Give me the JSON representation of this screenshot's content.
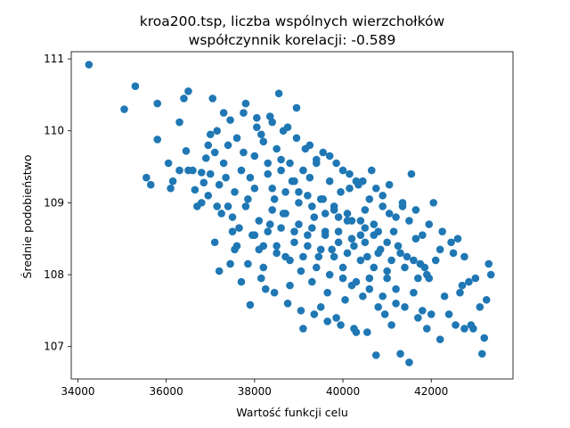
{
  "chart_data": {
    "type": "scatter",
    "title": "kroa200.tsp, liczba wspólnych wierzchołków",
    "subtitle": "współczynnik korelacji: -0.589",
    "xlabel": "Wartość funkcji celu",
    "ylabel": "Średnie podobieństwo",
    "xlim": [
      33850,
      43850
    ],
    "ylim": [
      106.55,
      111.1
    ],
    "xticks": [
      34000,
      36000,
      38000,
      40000,
      42000
    ],
    "xtick_labels": [
      "34000",
      "36000",
      "38000",
      "40000",
      "42000"
    ],
    "yticks": [
      107,
      108,
      109,
      110,
      111
    ],
    "ytick_labels": [
      "107",
      "108",
      "109",
      "110",
      "111"
    ],
    "grid": false,
    "point_color": "#1f77b4",
    "series": [
      {
        "points": [
          [
            34250,
            110.92
          ],
          [
            35050,
            110.3
          ],
          [
            35300,
            110.62
          ],
          [
            35550,
            109.35
          ],
          [
            35650,
            109.25
          ],
          [
            35800,
            110.38
          ],
          [
            35800,
            109.88
          ],
          [
            36050,
            109.55
          ],
          [
            36100,
            109.2
          ],
          [
            36150,
            109.3
          ],
          [
            36300,
            109.45
          ],
          [
            36300,
            110.12
          ],
          [
            36400,
            110.45
          ],
          [
            36450,
            109.72
          ],
          [
            36500,
            110.55
          ],
          [
            36500,
            109.45
          ],
          [
            36600,
            109.45
          ],
          [
            36650,
            109.18
          ],
          [
            36700,
            108.95
          ],
          [
            36800,
            109.42
          ],
          [
            36850,
            109.28
          ],
          [
            36900,
            109.62
          ],
          [
            36950,
            109.1
          ],
          [
            37000,
            109.95
          ],
          [
            37050,
            110.45
          ],
          [
            37100,
            108.45
          ],
          [
            37150,
            108.95
          ],
          [
            37200,
            108.05
          ],
          [
            37300,
            110.25
          ],
          [
            37350,
            109.35
          ],
          [
            37400,
            108.95
          ],
          [
            37450,
            108.15
          ],
          [
            37500,
            108.8
          ],
          [
            37550,
            109.15
          ],
          [
            37600,
            108.4
          ],
          [
            37650,
            108.65
          ],
          [
            37700,
            107.9
          ],
          [
            37750,
            109.7
          ],
          [
            37800,
            110.38
          ],
          [
            37850,
            109.05
          ],
          [
            37900,
            107.58
          ],
          [
            37950,
            108.55
          ],
          [
            38000,
            109.2
          ],
          [
            38050,
            110.18
          ],
          [
            38100,
            108.35
          ],
          [
            38150,
            109.95
          ],
          [
            38200,
            108.1
          ],
          [
            38250,
            107.8
          ],
          [
            38300,
            109.4
          ],
          [
            38350,
            108.7
          ],
          [
            38400,
            110.12
          ],
          [
            38450,
            109.05
          ],
          [
            38500,
            108.4
          ],
          [
            38550,
            110.52
          ],
          [
            38600,
            109.6
          ],
          [
            38650,
            108.85
          ],
          [
            38700,
            108.25
          ],
          [
            38750,
            110.05
          ],
          [
            38800,
            107.85
          ],
          [
            38850,
            109.3
          ],
          [
            38900,
            108.6
          ],
          [
            38950,
            110.32
          ],
          [
            39000,
            109.15
          ],
          [
            39050,
            108.05
          ],
          [
            39100,
            107.25
          ],
          [
            39150,
            109.75
          ],
          [
            39200,
            108.55
          ],
          [
            39250,
            109.35
          ],
          [
            39300,
            107.9
          ],
          [
            39350,
            108.8
          ],
          [
            39400,
            109.55
          ],
          [
            39450,
            108.25
          ],
          [
            39500,
            107.55
          ],
          [
            39550,
            109.05
          ],
          [
            39600,
            108.6
          ],
          [
            39650,
            107.75
          ],
          [
            39700,
            109.65
          ],
          [
            39750,
            108.35
          ],
          [
            39800,
            108.95
          ],
          [
            39850,
            107.4
          ],
          [
            39900,
            108.45
          ],
          [
            39950,
            109.15
          ],
          [
            40000,
            108.1
          ],
          [
            40050,
            107.65
          ],
          [
            40100,
            108.75
          ],
          [
            40150,
            109.2
          ],
          [
            40200,
            107.85
          ],
          [
            40250,
            108.4
          ],
          [
            40300,
            107.2
          ],
          [
            40350,
            109.25
          ],
          [
            40400,
            108.55
          ],
          [
            40450,
            107.7
          ],
          [
            40500,
            108.9
          ],
          [
            40550,
            108.25
          ],
          [
            40600,
            107.95
          ],
          [
            40650,
            109.45
          ],
          [
            40700,
            108.7
          ],
          [
            40750,
            106.88
          ],
          [
            40800,
            107.55
          ],
          [
            40850,
            108.35
          ],
          [
            40900,
            109.1
          ],
          [
            40950,
            107.45
          ],
          [
            41000,
            108.05
          ],
          [
            41050,
            108.85
          ],
          [
            41100,
            107.3
          ],
          [
            41150,
            108.6
          ],
          [
            41200,
            107.8
          ],
          [
            41250,
            108.4
          ],
          [
            41300,
            106.9
          ],
          [
            41350,
            108.95
          ],
          [
            41400,
            107.55
          ],
          [
            41450,
            108.25
          ],
          [
            41500,
            106.78
          ],
          [
            41550,
            109.4
          ],
          [
            41600,
            107.75
          ],
          [
            41650,
            108.5
          ],
          [
            41700,
            107.4
          ],
          [
            41750,
            108.15
          ],
          [
            41800,
            107.5
          ],
          [
            41850,
            108.1
          ],
          [
            41900,
            107.25
          ],
          [
            41950,
            107.95
          ],
          [
            42000,
            107.45
          ],
          [
            42050,
            109.0
          ],
          [
            42100,
            108.2
          ],
          [
            42200,
            107.1
          ],
          [
            42300,
            107.7
          ],
          [
            42400,
            107.45
          ],
          [
            42500,
            108.3
          ],
          [
            42550,
            107.3
          ],
          [
            42600,
            108.5
          ],
          [
            42700,
            107.85
          ],
          [
            42750,
            107.25
          ],
          [
            42850,
            107.9
          ],
          [
            42900,
            107.3
          ],
          [
            43000,
            107.95
          ],
          [
            43100,
            107.55
          ],
          [
            43150,
            106.9
          ],
          [
            43200,
            107.12
          ],
          [
            43250,
            107.65
          ],
          [
            43300,
            108.15
          ],
          [
            43350,
            108.0
          ],
          [
            42950,
            107.25
          ],
          [
            42650,
            107.75
          ],
          [
            42200,
            108.35
          ],
          [
            37100,
            109.7
          ],
          [
            37300,
            109.55
          ],
          [
            37600,
            109.9
          ],
          [
            37900,
            109.35
          ],
          [
            38200,
            109.85
          ],
          [
            38500,
            109.75
          ],
          [
            38800,
            109.55
          ],
          [
            39100,
            109.45
          ],
          [
            39400,
            109.6
          ],
          [
            39700,
            109.3
          ],
          [
            40000,
            109.45
          ],
          [
            40300,
            109.3
          ],
          [
            40600,
            109.05
          ],
          [
            40900,
            108.95
          ],
          [
            41200,
            108.8
          ],
          [
            41500,
            108.75
          ],
          [
            41800,
            108.55
          ],
          [
            37200,
            109.25
          ],
          [
            37500,
            108.6
          ],
          [
            37800,
            108.95
          ],
          [
            38100,
            108.75
          ],
          [
            38400,
            108.9
          ],
          [
            38700,
            108.85
          ],
          [
            39000,
            108.7
          ],
          [
            39300,
            108.65
          ],
          [
            39600,
            108.55
          ],
          [
            39900,
            108.6
          ],
          [
            40200,
            108.5
          ],
          [
            40500,
            108.45
          ],
          [
            40800,
            108.3
          ],
          [
            41100,
            108.2
          ],
          [
            41400,
            108.1
          ],
          [
            41700,
            107.95
          ],
          [
            37400,
            109.8
          ],
          [
            37700,
            109.45
          ],
          [
            38000,
            109.65
          ],
          [
            38300,
            109.55
          ],
          [
            38600,
            109.45
          ],
          [
            38900,
            109.3
          ],
          [
            39200,
            109.1
          ],
          [
            39500,
            109.05
          ],
          [
            39800,
            108.9
          ],
          [
            40100,
            108.85
          ],
          [
            40400,
            108.75
          ],
          [
            40700,
            108.55
          ],
          [
            41000,
            108.45
          ],
          [
            41300,
            108.3
          ],
          [
            41600,
            108.2
          ],
          [
            41900,
            108.0
          ],
          [
            38200,
            108.4
          ],
          [
            38500,
            108.3
          ],
          [
            38800,
            108.2
          ],
          [
            39100,
            108.25
          ],
          [
            39400,
            108.1
          ],
          [
            39700,
            108.0
          ],
          [
            40000,
            107.95
          ],
          [
            40300,
            107.9
          ],
          [
            40600,
            107.8
          ],
          [
            40900,
            107.7
          ],
          [
            41200,
            107.6
          ],
          [
            38000,
            108.55
          ],
          [
            38300,
            108.6
          ],
          [
            38600,
            108.65
          ],
          [
            38900,
            108.45
          ],
          [
            39200,
            108.4
          ],
          [
            39500,
            108.35
          ],
          [
            39800,
            108.25
          ],
          [
            40100,
            108.3
          ],
          [
            40400,
            108.2
          ],
          [
            40700,
            108.1
          ],
          [
            41000,
            107.95
          ],
          [
            38400,
            109.2
          ],
          [
            38700,
            109.15
          ],
          [
            39000,
            109.0
          ],
          [
            39300,
            108.95
          ],
          [
            39600,
            108.85
          ],
          [
            39900,
            108.8
          ],
          [
            40200,
            108.75
          ],
          [
            40500,
            108.65
          ],
          [
            40800,
            108.6
          ],
          [
            37000,
            109.4
          ],
          [
            37250,
            108.85
          ],
          [
            37550,
            108.35
          ],
          [
            37850,
            108.15
          ],
          [
            38150,
            107.95
          ],
          [
            38450,
            107.75
          ],
          [
            38750,
            107.6
          ],
          [
            39050,
            107.5
          ],
          [
            39350,
            107.45
          ],
          [
            39650,
            107.35
          ],
          [
            39950,
            107.3
          ],
          [
            40250,
            107.25
          ],
          [
            40550,
            107.2
          ],
          [
            36800,
            109.0
          ],
          [
            36950,
            109.8
          ],
          [
            37150,
            110.0
          ],
          [
            37450,
            110.15
          ],
          [
            37750,
            110.25
          ],
          [
            38050,
            110.05
          ],
          [
            38350,
            110.2
          ],
          [
            38650,
            110.0
          ],
          [
            38950,
            109.9
          ],
          [
            39250,
            109.8
          ],
          [
            39550,
            109.7
          ],
          [
            39850,
            109.55
          ],
          [
            40150,
            109.4
          ],
          [
            40450,
            109.3
          ],
          [
            40750,
            109.2
          ],
          [
            41050,
            109.25
          ],
          [
            41350,
            109.0
          ],
          [
            41650,
            108.9
          ],
          [
            41950,
            108.7
          ],
          [
            42250,
            108.6
          ],
          [
            42450,
            108.45
          ],
          [
            42750,
            108.25
          ]
        ]
      }
    ]
  }
}
